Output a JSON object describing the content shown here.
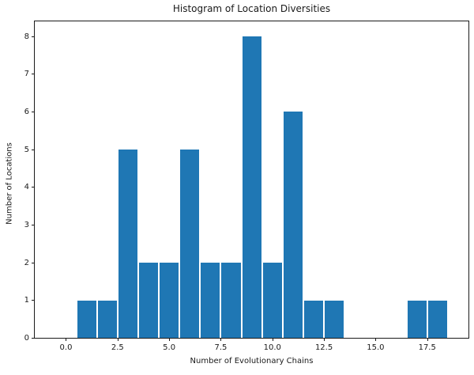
{
  "chart_data": {
    "type": "bar",
    "subtype": "histogram",
    "title": "Histogram of Location Diversities",
    "xlabel": "Number of Evolutionary Chains",
    "ylabel": "Number of Locations",
    "categories": [
      1,
      2,
      3,
      4,
      5,
      6,
      7,
      8,
      9,
      10,
      11,
      12,
      13,
      14,
      15,
      16,
      17,
      18
    ],
    "values": [
      1,
      1,
      5,
      2,
      2,
      5,
      2,
      2,
      8,
      2,
      6,
      1,
      1,
      0,
      0,
      0,
      1,
      1
    ],
    "bar_width": 0.92,
    "bar_color": "#1f77b4",
    "x_ticks": [
      0,
      2.5,
      5,
      7.5,
      10,
      12.5,
      15,
      17.5
    ],
    "x_tick_labels": [
      "0.0",
      "2.5",
      "5.0",
      "7.5",
      "10.0",
      "12.5",
      "15.0",
      "17.5"
    ],
    "y_ticks": [
      0,
      1,
      2,
      3,
      4,
      5,
      6,
      7,
      8
    ],
    "y_tick_labels": [
      "0",
      "1",
      "2",
      "3",
      "4",
      "5",
      "6",
      "7",
      "8"
    ],
    "xlim": [
      -1.55,
      19.52
    ],
    "ylim": [
      0,
      8.42
    ],
    "grid": false,
    "legend": false,
    "text_color": "#1a1a1a",
    "background_color": "#ffffff"
  }
}
